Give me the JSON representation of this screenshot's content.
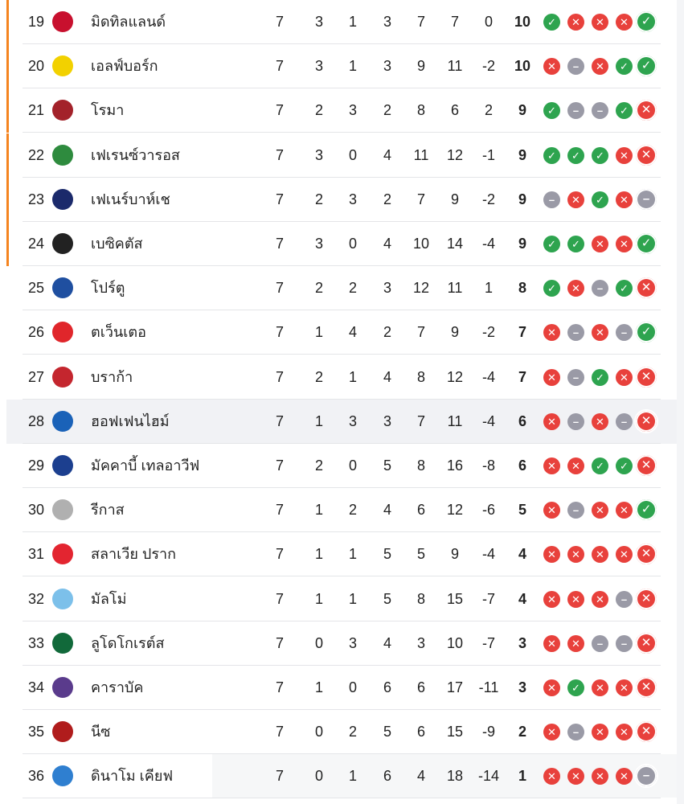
{
  "colors": {
    "win": "#2ea44f",
    "loss": "#e8413c",
    "draw": "#9a9aa6",
    "zone": "#f5841f",
    "highlight": "#f1f2f5"
  },
  "form_icons": {
    "W": "check-icon",
    "L": "x-icon",
    "D": "minus-icon"
  },
  "rows": [
    {
      "pos": "19",
      "team": "มิดทิลแลนด์",
      "p": "7",
      "w": "3",
      "d": "1",
      "l": "3",
      "gf": "7",
      "ga": "7",
      "gd": "0",
      "pts": "10",
      "form": [
        "W",
        "L",
        "L",
        "L",
        "W"
      ],
      "zone": true,
      "logo": "#c8102e"
    },
    {
      "pos": "20",
      "team": "เอลฟ์บอร์ก",
      "p": "7",
      "w": "3",
      "d": "1",
      "l": "3",
      "gf": "9",
      "ga": "11",
      "gd": "-2",
      "pts": "10",
      "form": [
        "L",
        "D",
        "L",
        "W",
        "W"
      ],
      "zone": true,
      "logo": "#f2d100"
    },
    {
      "pos": "21",
      "team": "โรมา",
      "p": "7",
      "w": "2",
      "d": "3",
      "l": "2",
      "gf": "8",
      "ga": "6",
      "gd": "2",
      "pts": "9",
      "form": [
        "W",
        "D",
        "D",
        "W",
        "L"
      ],
      "zone": true,
      "logo": "#a3222a"
    },
    {
      "pos": "22",
      "team": "เฟเรนซ์วารอส",
      "p": "7",
      "w": "3",
      "d": "0",
      "l": "4",
      "gf": "11",
      "ga": "12",
      "gd": "-1",
      "pts": "9",
      "form": [
        "W",
        "W",
        "W",
        "L",
        "L"
      ],
      "zone": true,
      "logo": "#2e8b3e"
    },
    {
      "pos": "23",
      "team": "เฟเนร์บาห์เช",
      "p": "7",
      "w": "2",
      "d": "3",
      "l": "2",
      "gf": "7",
      "ga": "9",
      "gd": "-2",
      "pts": "9",
      "form": [
        "D",
        "L",
        "W",
        "L",
        "D"
      ],
      "zone": true,
      "logo": "#1b2a6b"
    },
    {
      "pos": "24",
      "team": "เบซิคตัส",
      "p": "7",
      "w": "3",
      "d": "0",
      "l": "4",
      "gf": "10",
      "ga": "14",
      "gd": "-4",
      "pts": "9",
      "form": [
        "W",
        "W",
        "L",
        "L",
        "W"
      ],
      "zone": true,
      "logo": "#222222"
    },
    {
      "pos": "25",
      "team": "โปร์ตู",
      "p": "7",
      "w": "2",
      "d": "2",
      "l": "3",
      "gf": "12",
      "ga": "11",
      "gd": "1",
      "pts": "8",
      "form": [
        "W",
        "L",
        "D",
        "W",
        "L"
      ],
      "zone": false,
      "logo": "#1f4fa0"
    },
    {
      "pos": "26",
      "team": "ตเว็นเตอ",
      "p": "7",
      "w": "1",
      "d": "4",
      "l": "2",
      "gf": "7",
      "ga": "9",
      "gd": "-2",
      "pts": "7",
      "form": [
        "L",
        "D",
        "L",
        "D",
        "W"
      ],
      "zone": false,
      "logo": "#e0262b"
    },
    {
      "pos": "27",
      "team": "บราก้า",
      "p": "7",
      "w": "2",
      "d": "1",
      "l": "4",
      "gf": "8",
      "ga": "12",
      "gd": "-4",
      "pts": "7",
      "form": [
        "L",
        "D",
        "W",
        "L",
        "L"
      ],
      "zone": false,
      "logo": "#c4262e"
    },
    {
      "pos": "28",
      "team": "ฮอฟเฟนไฮม์",
      "p": "7",
      "w": "1",
      "d": "3",
      "l": "3",
      "gf": "7",
      "ga": "11",
      "gd": "-4",
      "pts": "6",
      "form": [
        "L",
        "D",
        "L",
        "D",
        "L"
      ],
      "zone": false,
      "highlight": true,
      "logo": "#1a62b8"
    },
    {
      "pos": "29",
      "team": "มัคคาบี้ เทลอาวีฟ",
      "p": "7",
      "w": "2",
      "d": "0",
      "l": "5",
      "gf": "8",
      "ga": "16",
      "gd": "-8",
      "pts": "6",
      "form": [
        "L",
        "L",
        "W",
        "W",
        "L"
      ],
      "zone": false,
      "logo": "#1c3f8f"
    },
    {
      "pos": "30",
      "team": "รีกาส",
      "p": "7",
      "w": "1",
      "d": "2",
      "l": "4",
      "gf": "6",
      "ga": "12",
      "gd": "-6",
      "pts": "5",
      "form": [
        "L",
        "D",
        "L",
        "L",
        "W"
      ],
      "zone": false,
      "logo": "#b0b0b0"
    },
    {
      "pos": "31",
      "team": "สลาเวีย ปราก",
      "p": "7",
      "w": "1",
      "d": "1",
      "l": "5",
      "gf": "5",
      "ga": "9",
      "gd": "-4",
      "pts": "4",
      "form": [
        "L",
        "L",
        "L",
        "L",
        "L"
      ],
      "zone": false,
      "logo": "#e32530"
    },
    {
      "pos": "32",
      "team": "มัลโม่",
      "p": "7",
      "w": "1",
      "d": "1",
      "l": "5",
      "gf": "8",
      "ga": "15",
      "gd": "-7",
      "pts": "4",
      "form": [
        "L",
        "L",
        "L",
        "D",
        "L"
      ],
      "zone": false,
      "logo": "#7cc0ea"
    },
    {
      "pos": "33",
      "team": "ลูโดโกเรต์ส",
      "p": "7",
      "w": "0",
      "d": "3",
      "l": "4",
      "gf": "3",
      "ga": "10",
      "gd": "-7",
      "pts": "3",
      "form": [
        "L",
        "L",
        "D",
        "D",
        "L"
      ],
      "zone": false,
      "logo": "#11693a"
    },
    {
      "pos": "34",
      "team": "คาราบัค",
      "p": "7",
      "w": "1",
      "d": "0",
      "l": "6",
      "gf": "6",
      "ga": "17",
      "gd": "-11",
      "pts": "3",
      "form": [
        "L",
        "W",
        "L",
        "L",
        "L"
      ],
      "zone": false,
      "logo": "#5a3b8c"
    },
    {
      "pos": "35",
      "team": "นีซ",
      "p": "7",
      "w": "0",
      "d": "2",
      "l": "5",
      "gf": "6",
      "ga": "15",
      "gd": "-9",
      "pts": "2",
      "form": [
        "L",
        "D",
        "L",
        "L",
        "L"
      ],
      "zone": false,
      "logo": "#b01c1c"
    },
    {
      "pos": "36",
      "team": "ดินาโม เคียฟ",
      "p": "7",
      "w": "0",
      "d": "1",
      "l": "6",
      "gf": "4",
      "ga": "18",
      "gd": "-14",
      "pts": "1",
      "form": [
        "L",
        "L",
        "L",
        "L",
        "D"
      ],
      "zone": false,
      "logo": "#2f7fd0"
    }
  ]
}
